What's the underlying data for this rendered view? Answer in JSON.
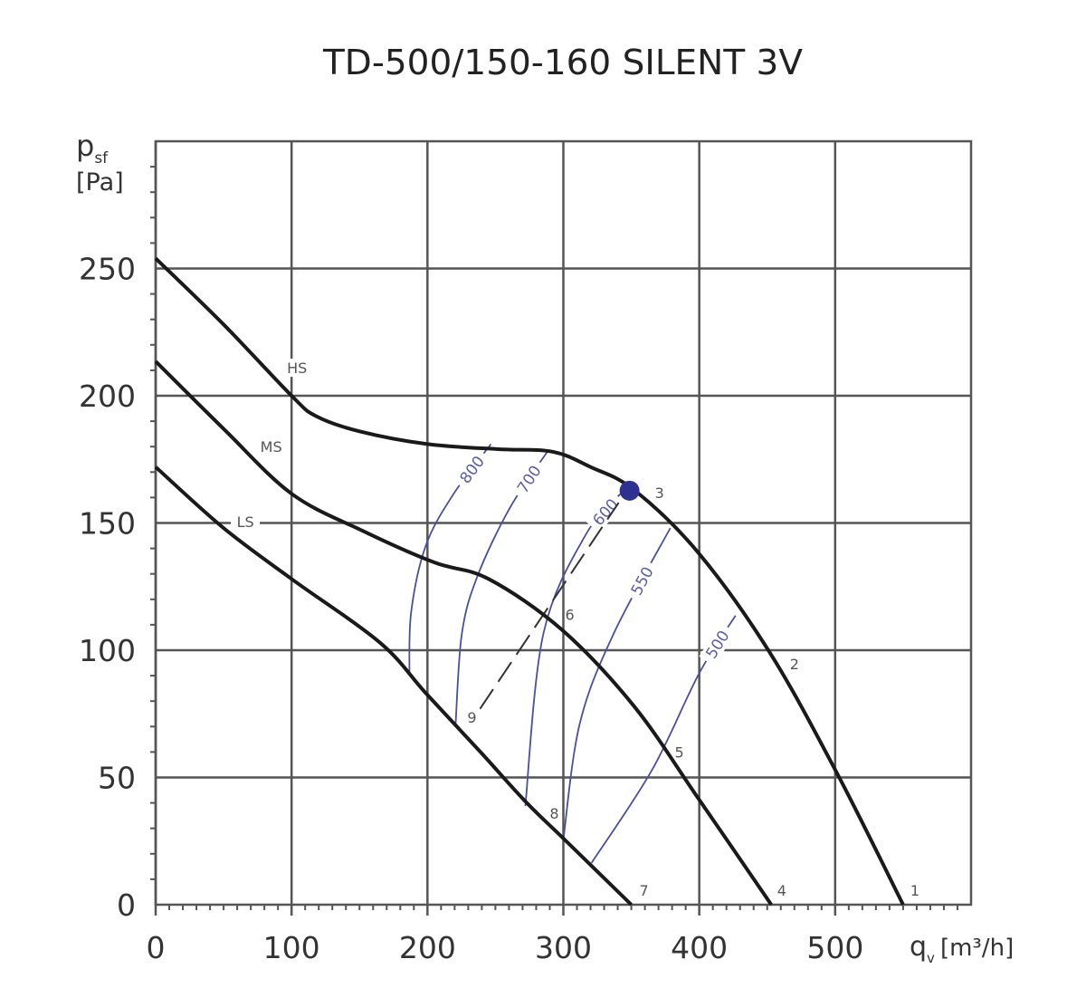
{
  "chart_data": {
    "type": "line",
    "title": "TD-500/150-160 SILENT 3V",
    "ylabel_main": "p",
    "ylabel_sub": "sf",
    "ylabel_unit": "[Pa]",
    "xlabel_main": "q",
    "xlabel_sub": "v",
    "xlabel_unit": "[m³/h]",
    "xlim": [
      0,
      600
    ],
    "ylim": [
      0,
      300
    ],
    "xticks": [
      0,
      100,
      200,
      300,
      400,
      500
    ],
    "yticks": [
      0,
      50,
      100,
      150,
      200,
      250
    ],
    "grid": true,
    "colors": {
      "curve": "#1a1a1a",
      "iso": "#4a4fa0",
      "grid": "#555555",
      "point": "#2e3192"
    },
    "series": [
      {
        "name": "HS",
        "x": [
          0,
          50,
          100,
          118,
          150,
          200,
          252,
          292,
          320,
          352,
          399,
          452,
          502,
          550
        ],
        "y": [
          254,
          228,
          200,
          192,
          186,
          181,
          179,
          178,
          172,
          163,
          138.5,
          99,
          51,
          0
        ],
        "label_at": [
          104,
          211
        ]
      },
      {
        "name": "MS",
        "x": [
          0,
          50,
          100,
          152,
          205,
          245,
          299,
          352,
          399,
          453
        ],
        "y": [
          213.5,
          187,
          161.5,
          147,
          134.5,
          128,
          108,
          78,
          42,
          0
        ],
        "label_at": [
          85,
          180
        ]
      },
      {
        "name": "LS",
        "x": [
          0,
          50,
          100,
          165,
          199,
          239,
          272,
          302,
          350
        ],
        "y": [
          172,
          148,
          128,
          103,
          83,
          60,
          40.6,
          25,
          0
        ],
        "label_at": [
          66,
          150.6
        ]
      }
    ],
    "iso_lines": [
      {
        "name": "800",
        "x": [
          186.7,
          188,
          198.7,
          218.7,
          246.7
        ],
        "y": [
          91,
          115,
          141,
          161,
          181
        ]
      },
      {
        "name": "700",
        "x": [
          220.7,
          225.3,
          236.7,
          260.7,
          288.7
        ],
        "y": [
          71,
          106.5,
          129,
          156,
          178.4
        ]
      },
      {
        "name": "600",
        "x": [
          272,
          285.3,
          316.7,
          345
        ],
        "y": [
          38.8,
          106.5,
          145.6,
          163
        ]
      },
      {
        "name": "550",
        "x": [
          300,
          312,
          337,
          378.7
        ],
        "y": [
          25.6,
          71,
          106.5,
          148
        ]
      },
      {
        "name": "500",
        "x": [
          320.7,
          365.3,
          400,
          426.7
        ],
        "y": [
          16.4,
          53,
          91,
          113.6
        ]
      }
    ],
    "system_line": {
      "x": [
        238.7,
        340.7
      ],
      "y": [
        77,
        158
      ]
    },
    "operating_point": {
      "x": 348.7,
      "y": 162.7
    },
    "point_labels": [
      {
        "text": "1",
        "x": 558.7,
        "y": 5.7
      },
      {
        "text": "2",
        "x": 470,
        "y": 94.7
      },
      {
        "text": "3",
        "x": 370.7,
        "y": 162
      },
      {
        "text": "4",
        "x": 460.7,
        "y": 5.7
      },
      {
        "text": "5",
        "x": 385.3,
        "y": 60
      },
      {
        "text": "6",
        "x": 304.7,
        "y": 114
      },
      {
        "text": "7",
        "x": 359.3,
        "y": 5.7
      },
      {
        "text": "8",
        "x": 293.3,
        "y": 36
      },
      {
        "text": "9",
        "x": 232.7,
        "y": 73.7
      }
    ]
  }
}
